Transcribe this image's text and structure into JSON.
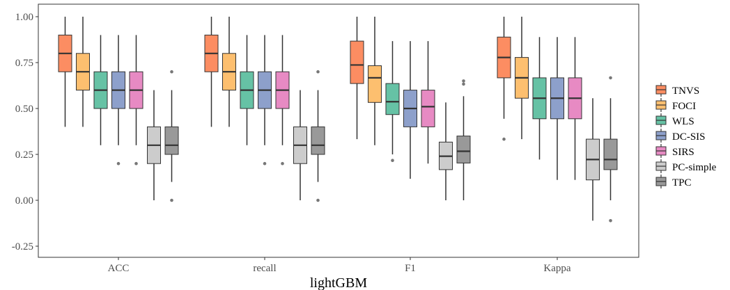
{
  "chart_data": {
    "type": "boxplot",
    "title": "",
    "xlabel": "lightGBM",
    "ylabel": "",
    "ylim": [
      -0.3,
      1.05
    ],
    "y_ticks": [
      1.0,
      0.75,
      0.5,
      0.25,
      0.0,
      -0.25
    ],
    "y_tick_labels": [
      "1.00",
      "0.75",
      "0.50",
      "0.25",
      "0.00",
      "-0.25"
    ],
    "grid": false,
    "legend_position": "right",
    "categories": [
      "ACC",
      "recall",
      "F1",
      "Kappa"
    ],
    "series": [
      {
        "name": "TNVS",
        "color": "#FC8D62",
        "values": [
          {
            "min": 0.4,
            "q1": 0.7,
            "median": 0.8,
            "q3": 0.9,
            "max": 1.0,
            "outliers": []
          },
          {
            "min": 0.4,
            "q1": 0.7,
            "median": 0.8,
            "q3": 0.9,
            "max": 1.0,
            "outliers": []
          },
          {
            "min": 0.333,
            "q1": 0.636,
            "median": 0.737,
            "q3": 0.867,
            "max": 1.0,
            "outliers": []
          },
          {
            "min": 0.444,
            "q1": 0.667,
            "median": 0.778,
            "q3": 0.889,
            "max": 1.0,
            "outliers": [
              0.333
            ]
          }
        ]
      },
      {
        "name": "FOCI",
        "color": "#FDBF6F",
        "values": [
          {
            "min": 0.4,
            "q1": 0.6,
            "median": 0.7,
            "q3": 0.8,
            "max": 1.0,
            "outliers": []
          },
          {
            "min": 0.4,
            "q1": 0.6,
            "median": 0.7,
            "q3": 0.8,
            "max": 1.0,
            "outliers": []
          },
          {
            "min": 0.3,
            "q1": 0.533,
            "median": 0.667,
            "q3": 0.733,
            "max": 1.0,
            "outliers": []
          },
          {
            "min": 0.333,
            "q1": 0.556,
            "median": 0.667,
            "q3": 0.778,
            "max": 1.0,
            "outliers": []
          }
        ]
      },
      {
        "name": "WLS",
        "color": "#66C2A5",
        "values": [
          {
            "min": 0.3,
            "q1": 0.5,
            "median": 0.6,
            "q3": 0.7,
            "max": 0.9,
            "outliers": []
          },
          {
            "min": 0.3,
            "q1": 0.5,
            "median": 0.6,
            "q3": 0.7,
            "max": 0.9,
            "outliers": []
          },
          {
            "min": 0.25,
            "q1": 0.467,
            "median": 0.537,
            "q3": 0.636,
            "max": 0.867,
            "outliers": [
              0.217
            ]
          },
          {
            "min": 0.222,
            "q1": 0.444,
            "median": 0.556,
            "q3": 0.667,
            "max": 0.889,
            "outliers": []
          }
        ]
      },
      {
        "name": "DC-SIS",
        "color": "#8DA0CB",
        "values": [
          {
            "min": 0.3,
            "q1": 0.5,
            "median": 0.6,
            "q3": 0.7,
            "max": 0.9,
            "outliers": [
              0.2
            ]
          },
          {
            "min": 0.3,
            "q1": 0.5,
            "median": 0.6,
            "q3": 0.7,
            "max": 0.9,
            "outliers": [
              0.2
            ]
          },
          {
            "min": 0.117,
            "q1": 0.4,
            "median": 0.5,
            "q3": 0.6,
            "max": 0.867,
            "outliers": []
          },
          {
            "min": 0.111,
            "q1": 0.444,
            "median": 0.556,
            "q3": 0.667,
            "max": 0.889,
            "outliers": []
          }
        ]
      },
      {
        "name": "SIRS",
        "color": "#E78AC3",
        "values": [
          {
            "min": 0.3,
            "q1": 0.5,
            "median": 0.6,
            "q3": 0.7,
            "max": 0.9,
            "outliers": [
              0.2
            ]
          },
          {
            "min": 0.3,
            "q1": 0.5,
            "median": 0.6,
            "q3": 0.7,
            "max": 0.9,
            "outliers": [
              0.2
            ]
          },
          {
            "min": 0.2,
            "q1": 0.4,
            "median": 0.51,
            "q3": 0.6,
            "max": 0.867,
            "outliers": []
          },
          {
            "min": 0.111,
            "q1": 0.444,
            "median": 0.556,
            "q3": 0.667,
            "max": 0.889,
            "outliers": []
          }
        ]
      },
      {
        "name": "PC-simple",
        "color": "#CCCCCC",
        "values": [
          {
            "min": 0.0,
            "q1": 0.2,
            "median": 0.3,
            "q3": 0.4,
            "max": 0.6,
            "outliers": []
          },
          {
            "min": 0.0,
            "q1": 0.2,
            "median": 0.3,
            "q3": 0.4,
            "max": 0.6,
            "outliers": []
          },
          {
            "min": 0.0,
            "q1": 0.167,
            "median": 0.24,
            "q3": 0.317,
            "max": 0.533,
            "outliers": []
          },
          {
            "min": -0.111,
            "q1": 0.111,
            "median": 0.222,
            "q3": 0.333,
            "max": 0.556,
            "outliers": []
          }
        ]
      },
      {
        "name": "TPC",
        "color": "#999999",
        "values": [
          {
            "min": 0.1,
            "q1": 0.25,
            "median": 0.3,
            "q3": 0.4,
            "max": 0.6,
            "outliers": [
              0.7,
              0.0
            ]
          },
          {
            "min": 0.1,
            "q1": 0.25,
            "median": 0.3,
            "q3": 0.4,
            "max": 0.6,
            "outliers": [
              0.7,
              0.0
            ]
          },
          {
            "min": 0.0,
            "q1": 0.203,
            "median": 0.267,
            "q3": 0.35,
            "max": 0.567,
            "outliers": [
              0.633,
              0.65
            ]
          },
          {
            "min": 0.0,
            "q1": 0.167,
            "median": 0.222,
            "q3": 0.333,
            "max": 0.556,
            "outliers": [
              0.667,
              -0.111
            ]
          }
        ]
      }
    ]
  }
}
